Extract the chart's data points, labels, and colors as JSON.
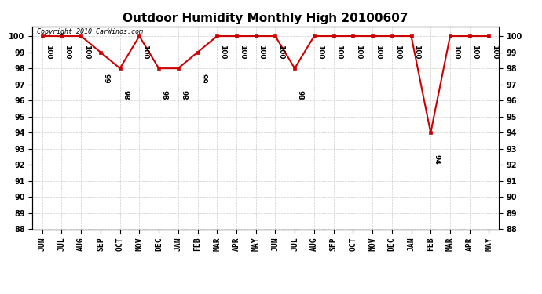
{
  "title": "Outdoor Humidity Monthly High 20100607",
  "watermark": "Copyright 2010 CarWinos.com",
  "months": [
    "JUN",
    "JUL",
    "AUG",
    "SEP",
    "OCT",
    "NOV",
    "DEC",
    "JAN",
    "FEB",
    "MAR",
    "APR",
    "MAY",
    "JUN",
    "JUL",
    "AUG",
    "SEP",
    "OCT",
    "NOV",
    "DEC",
    "JAN",
    "FEB",
    "MAR",
    "APR",
    "MAY"
  ],
  "values": [
    100,
    100,
    100,
    99,
    98,
    100,
    98,
    98,
    99,
    100,
    100,
    100,
    100,
    98,
    100,
    100,
    100,
    100,
    100,
    100,
    94,
    100,
    100,
    100
  ],
  "ylim": [
    88,
    100.6
  ],
  "yticks": [
    88,
    89,
    90,
    91,
    92,
    93,
    94,
    95,
    96,
    97,
    98,
    99,
    100
  ],
  "line_color": "#cc0000",
  "marker": "s",
  "marker_color": "#cc0000",
  "marker_size": 3,
  "bg_color": "#ffffff",
  "grid_color": "#cccccc",
  "title_fontsize": 11,
  "label_fontsize": 7,
  "annot_fontsize": 6.5,
  "watermark_fontsize": 6
}
